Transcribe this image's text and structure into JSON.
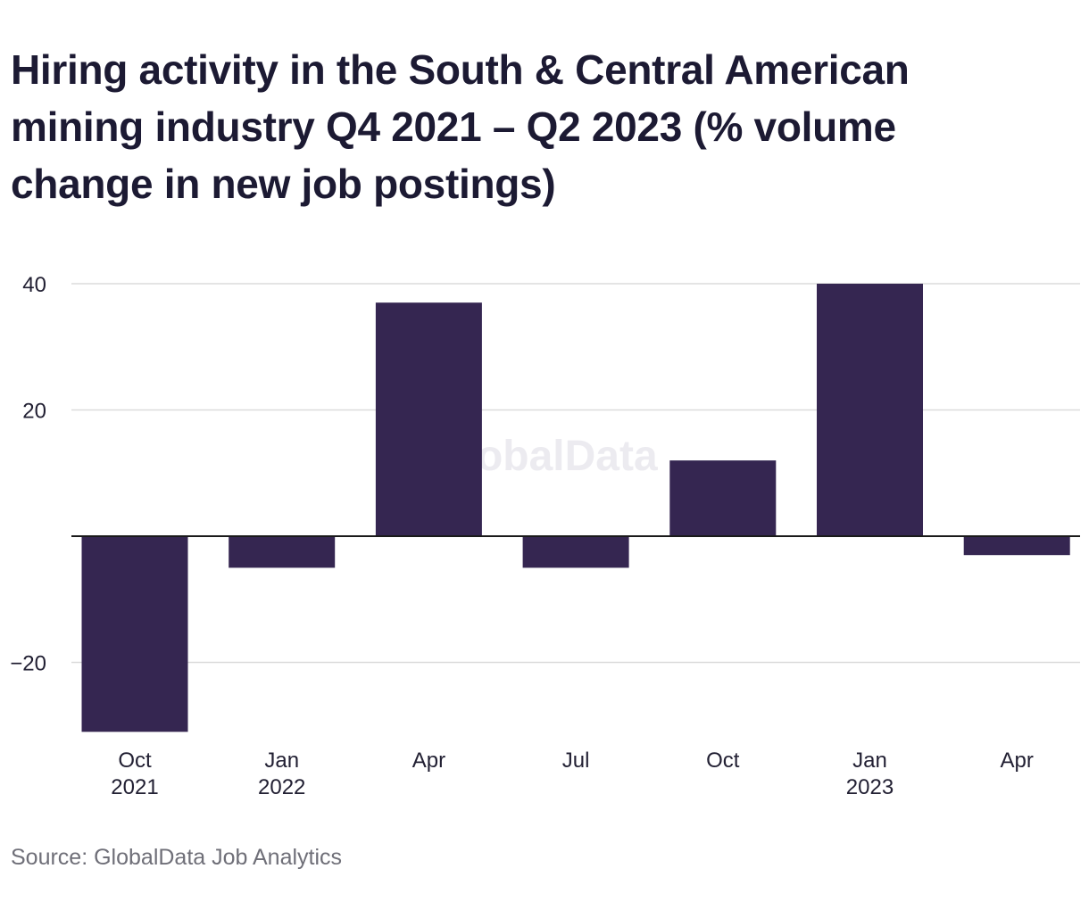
{
  "title": "Hiring activity in the South & Central American mining industry Q4 2021 – Q2 2023 (% volume change in new job postings)",
  "source": "Source: GlobalData Job Analytics",
  "watermark": "GlobalData",
  "colors": {
    "bar": "#352651",
    "grid": "#dcdcdc",
    "zero_line": "#1a1a1a",
    "title": "#1c1a33",
    "source": "#6f6f78"
  },
  "chart_data": {
    "type": "bar",
    "categories": [
      {
        "line1": "Oct",
        "line2": "2021"
      },
      {
        "line1": "Jan",
        "line2": "2022"
      },
      {
        "line1": "Apr",
        "line2": ""
      },
      {
        "line1": "Jul",
        "line2": ""
      },
      {
        "line1": "Oct",
        "line2": ""
      },
      {
        "line1": "Jan",
        "line2": "2023"
      },
      {
        "line1": "Apr",
        "line2": ""
      }
    ],
    "values": [
      -31,
      -5,
      37,
      -5,
      12,
      40,
      -3
    ],
    "yticks": [
      40,
      20,
      -20
    ],
    "yticklabels": [
      "40",
      "20",
      "−20"
    ],
    "ylim": [
      -31,
      40
    ],
    "grid": true,
    "legend": "none",
    "xlabel": "",
    "ylabel": ""
  }
}
